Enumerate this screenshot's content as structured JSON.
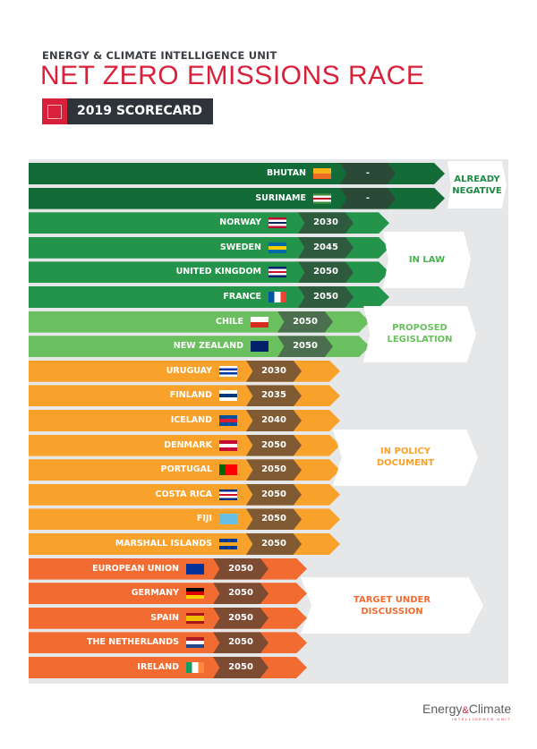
{
  "header": {
    "organization": "ENERGY & CLIMATE INTELLIGENCE UNIT",
    "title": "NET ZERO EMISSIONS RACE",
    "badge": "2019 SCORECARD"
  },
  "footer": {
    "logo_main_a": "Energy",
    "logo_amp": "&",
    "logo_main_b": "Climate",
    "logo_sub": "INTELLIGENCE UNIT"
  },
  "chart_data": {
    "type": "table",
    "title": "NET ZERO EMISSIONS RACE",
    "groups": [
      {
        "label": "ALREADY NEGATIVE",
        "color": "#136b37",
        "text_color": "#1e8a43",
        "year_box": "#2a4a37"
      },
      {
        "label": "IN LAW",
        "color": "#23944a",
        "text_color": "#4bb04f",
        "year_box": "#2e5a3e"
      },
      {
        "label": "PROPOSED LEGISLATION",
        "color": "#6abf5e",
        "text_color": "#6abf5e",
        "year_box": "#4a6e4e"
      },
      {
        "label": "IN POLICY DOCUMENT",
        "color": "#f9a22b",
        "text_color": "#f9a22b",
        "year_box": "#7f5a33"
      },
      {
        "label": "TARGET UNDER DISCUSSION",
        "color": "#f26c32",
        "text_color": "#f26c32",
        "year_box": "#7d4a32"
      }
    ],
    "rows": [
      {
        "country": "BHUTAN",
        "target": "-",
        "group": 0,
        "flag": [
          "#f7b217",
          "#ee6b26"
        ]
      },
      {
        "country": "SURINAME",
        "target": "-",
        "group": 0,
        "flag": [
          "#3a8a3d",
          "#fff",
          "#c8102e",
          "#fff",
          "#3a8a3d"
        ]
      },
      {
        "country": "NORWAY",
        "target": "2030",
        "group": 1,
        "flag": [
          "#ba0c2f",
          "#fff",
          "#00205b",
          "#fff",
          "#ba0c2f"
        ]
      },
      {
        "country": "SWEDEN",
        "target": "2045",
        "group": 1,
        "flag": [
          "#006aa7",
          "#fecc00",
          "#006aa7"
        ]
      },
      {
        "country": "UNITED KINGDOM",
        "target": "2050",
        "group": 1,
        "flag": [
          "#012169",
          "#fff",
          "#c8102e",
          "#fff",
          "#012169"
        ]
      },
      {
        "country": "FRANCE",
        "target": "2050",
        "group": 1,
        "flag": [
          "#0055a4",
          "#fff",
          "#ef4135"
        ],
        "vertical": true
      },
      {
        "country": "CHILE",
        "target": "2050",
        "group": 2,
        "flag": [
          "#fff",
          "#d52b1e"
        ]
      },
      {
        "country": "NEW ZEALAND",
        "target": "2050",
        "group": 2,
        "flag": [
          "#012169",
          "#012169"
        ]
      },
      {
        "country": "URUGUAY",
        "target": "2030",
        "group": 3,
        "flag": [
          "#fff",
          "#0038a8",
          "#fff",
          "#0038a8",
          "#fff"
        ]
      },
      {
        "country": "FINLAND",
        "target": "2035",
        "group": 3,
        "flag": [
          "#fff",
          "#003580",
          "#fff"
        ]
      },
      {
        "country": "ICELAND",
        "target": "2040",
        "group": 3,
        "flag": [
          "#02529c",
          "#dc1e35",
          "#02529c"
        ]
      },
      {
        "country": "DENMARK",
        "target": "2050",
        "group": 3,
        "flag": [
          "#c60c30",
          "#fff",
          "#c60c30"
        ]
      },
      {
        "country": "PORTUGAL",
        "target": "2050",
        "group": 3,
        "flag": [
          "#006600",
          "#ff0000",
          "#ff0000"
        ],
        "vertical": true
      },
      {
        "country": "COSTA RICA",
        "target": "2050",
        "group": 3,
        "flag": [
          "#002b7f",
          "#fff",
          "#ce1126",
          "#fff",
          "#002b7f"
        ]
      },
      {
        "country": "FIJI",
        "target": "2050",
        "group": 3,
        "flag": [
          "#68bfe5",
          "#68bfe5"
        ]
      },
      {
        "country": "MARSHALL ISLANDS",
        "target": "2050",
        "group": 3,
        "flag": [
          "#003893",
          "#f5a623",
          "#003893"
        ]
      },
      {
        "country": "EUROPEAN UNION",
        "target": "2050",
        "group": 4,
        "flag": [
          "#003399",
          "#003399"
        ]
      },
      {
        "country": "GERMANY",
        "target": "2050",
        "group": 4,
        "flag": [
          "#000",
          "#dd0000",
          "#ffce00"
        ]
      },
      {
        "country": "SPAIN",
        "target": "2050",
        "group": 4,
        "flag": [
          "#aa151b",
          "#f1bf00",
          "#f1bf00",
          "#aa151b"
        ]
      },
      {
        "country": "THE NETHERLANDS",
        "target": "2050",
        "group": 4,
        "flag": [
          "#ae1c28",
          "#fff",
          "#21468b"
        ]
      },
      {
        "country": "IRELAND",
        "target": "2050",
        "group": 4,
        "flag": [
          "#169b62",
          "#fff",
          "#ff883e"
        ],
        "vertical": true
      }
    ]
  }
}
